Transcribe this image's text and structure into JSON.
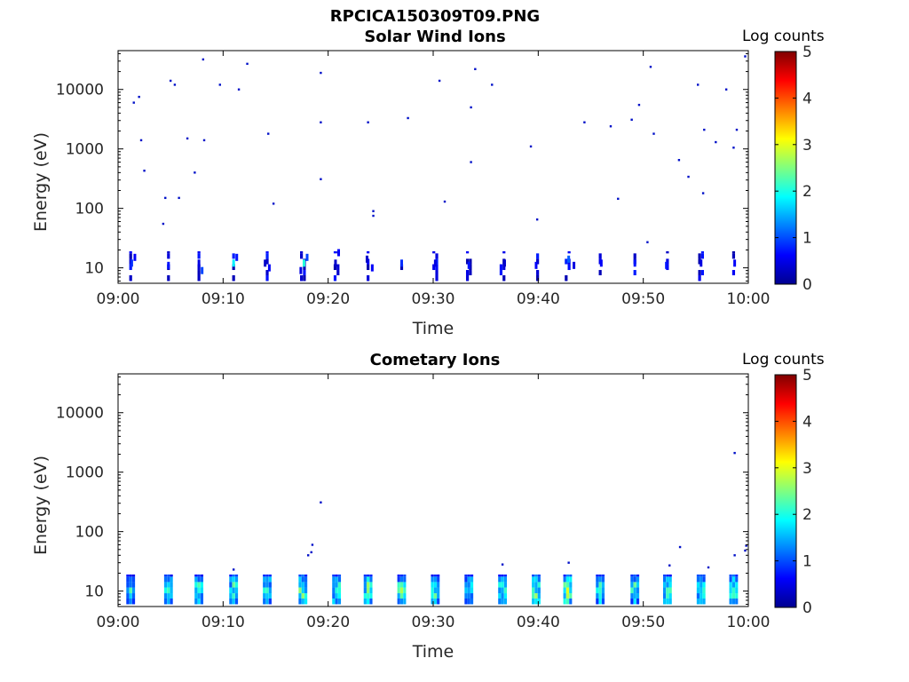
{
  "figure": {
    "title": "RPCICA150309T09.PNG",
    "background": "#ffffff"
  },
  "chart_data": [
    {
      "type": "heatmap",
      "title": "Solar Wind Ions",
      "xlabel": "Time",
      "ylabel": "Energy (eV)",
      "x_ticks": [
        "09:00",
        "09:10",
        "09:20",
        "09:30",
        "09:40",
        "09:50",
        "10:00"
      ],
      "x_range_minutes": [
        0,
        60
      ],
      "y_scale": "log",
      "y_range": [
        5.5,
        45000
      ],
      "y_ticks": [
        10,
        100,
        1000,
        10000
      ],
      "y_tick_labels": [
        "10",
        "100",
        "1000",
        "10000"
      ],
      "colorbar": {
        "label": "Log counts",
        "min": 0,
        "max": 5,
        "ticks": [
          "0",
          "1",
          "2",
          "3",
          "4",
          "5"
        ],
        "colormap": "jet"
      },
      "scan_times_min": [
        1.2,
        4.8,
        7.7,
        11.0,
        14.2,
        17.6,
        20.8,
        23.8,
        27.0,
        30.2,
        33.4,
        36.6,
        39.8,
        42.8,
        45.9,
        49.2,
        52.3,
        55.5,
        58.6
      ],
      "low_energy_points": [
        {
          "t": 1.3,
          "e": 12,
          "v": 0.7
        },
        {
          "t": 1.6,
          "e": 15,
          "v": 0.5
        },
        {
          "t": 4.8,
          "e": 11,
          "v": 0.6
        },
        {
          "t": 7.7,
          "e": 12,
          "v": 0.4
        },
        {
          "t": 8.0,
          "e": 9,
          "v": 0.8
        },
        {
          "t": 11.0,
          "e": 12,
          "v": 1.5
        },
        {
          "t": 11.3,
          "e": 15,
          "v": 0.6
        },
        {
          "t": 14.0,
          "e": 12,
          "v": 0.3
        },
        {
          "t": 14.4,
          "e": 10,
          "v": 0.5
        },
        {
          "t": 17.7,
          "e": 12,
          "v": 1.7
        },
        {
          "t": 18.0,
          "e": 15,
          "v": 0.8
        },
        {
          "t": 17.4,
          "e": 9,
          "v": 0.4
        },
        {
          "t": 20.7,
          "e": 12,
          "v": 0.3
        },
        {
          "t": 21.0,
          "e": 18,
          "v": 0.5
        },
        {
          "t": 23.7,
          "e": 14,
          "v": 0.3
        },
        {
          "t": 24.2,
          "e": 10,
          "v": 0.5
        },
        {
          "t": 27.0,
          "e": 12,
          "v": 0.7
        },
        {
          "t": 30.2,
          "e": 12,
          "v": 0.4
        },
        {
          "t": 33.4,
          "e": 11,
          "v": 0.6
        },
        {
          "t": 36.8,
          "e": 12,
          "v": 0.3
        },
        {
          "t": 39.8,
          "e": 11,
          "v": 0.5
        },
        {
          "t": 42.9,
          "e": 14,
          "v": 0.9
        },
        {
          "t": 43.4,
          "e": 11,
          "v": 0.4
        },
        {
          "t": 46.0,
          "e": 12,
          "v": 0.5
        },
        {
          "t": 49.2,
          "e": 12,
          "v": 0.6
        },
        {
          "t": 52.2,
          "e": 11,
          "v": 0.6
        },
        {
          "t": 55.5,
          "e": 12,
          "v": 0.4
        },
        {
          "t": 58.7,
          "e": 12,
          "v": 0.5
        }
      ],
      "scatter_points": [
        {
          "t": 1.5,
          "e": 6000
        },
        {
          "t": 2.0,
          "e": 7500
        },
        {
          "t": 2.2,
          "e": 1400
        },
        {
          "t": 2.5,
          "e": 430
        },
        {
          "t": 4.5,
          "e": 150
        },
        {
          "t": 4.3,
          "e": 55
        },
        {
          "t": 5.0,
          "e": 14000
        },
        {
          "t": 5.4,
          "e": 12000
        },
        {
          "t": 5.8,
          "e": 150
        },
        {
          "t": 6.6,
          "e": 1500
        },
        {
          "t": 7.3,
          "e": 400
        },
        {
          "t": 8.1,
          "e": 32000
        },
        {
          "t": 8.2,
          "e": 1400
        },
        {
          "t": 9.7,
          "e": 12000
        },
        {
          "t": 11.5,
          "e": 10000
        },
        {
          "t": 12.3,
          "e": 27000
        },
        {
          "t": 14.3,
          "e": 1800
        },
        {
          "t": 14.8,
          "e": 120
        },
        {
          "t": 19.3,
          "e": 19000
        },
        {
          "t": 19.3,
          "e": 2800
        },
        {
          "t": 19.3,
          "e": 310
        },
        {
          "t": 23.8,
          "e": 2800
        },
        {
          "t": 24.3,
          "e": 90
        },
        {
          "t": 24.3,
          "e": 75
        },
        {
          "t": 27.6,
          "e": 3300
        },
        {
          "t": 30.6,
          "e": 14000
        },
        {
          "t": 31.1,
          "e": 130
        },
        {
          "t": 33.6,
          "e": 5000
        },
        {
          "t": 34.0,
          "e": 22000
        },
        {
          "t": 33.6,
          "e": 600
        },
        {
          "t": 35.6,
          "e": 12000
        },
        {
          "t": 39.3,
          "e": 1100
        },
        {
          "t": 39.9,
          "e": 65
        },
        {
          "t": 44.4,
          "e": 2800
        },
        {
          "t": 46.9,
          "e": 2400
        },
        {
          "t": 47.6,
          "e": 145
        },
        {
          "t": 48.9,
          "e": 3100
        },
        {
          "t": 49.6,
          "e": 5500
        },
        {
          "t": 50.7,
          "e": 24000
        },
        {
          "t": 51.0,
          "e": 1800
        },
        {
          "t": 53.4,
          "e": 650
        },
        {
          "t": 54.3,
          "e": 340
        },
        {
          "t": 55.2,
          "e": 12000
        },
        {
          "t": 55.8,
          "e": 2100
        },
        {
          "t": 55.7,
          "e": 180
        },
        {
          "t": 56.9,
          "e": 1300
        },
        {
          "t": 57.9,
          "e": 10000
        },
        {
          "t": 58.6,
          "e": 1050
        },
        {
          "t": 58.9,
          "e": 2100
        },
        {
          "t": 59.7,
          "e": 36000
        },
        {
          "t": 50.4,
          "e": 27
        }
      ]
    },
    {
      "type": "heatmap",
      "title": "Cometary Ions",
      "xlabel": "Time",
      "ylabel": "Energy (eV)",
      "x_ticks": [
        "09:00",
        "09:10",
        "09:20",
        "09:30",
        "09:40",
        "09:50",
        "10:00"
      ],
      "x_range_minutes": [
        0,
        60
      ],
      "y_scale": "log",
      "y_range": [
        5.5,
        45000
      ],
      "y_ticks": [
        10,
        100,
        1000,
        10000
      ],
      "y_tick_labels": [
        "10",
        "100",
        "1000",
        "10000"
      ],
      "colorbar": {
        "label": "Log counts",
        "min": 0,
        "max": 5,
        "ticks": [
          "0",
          "1",
          "2",
          "3",
          "4",
          "5"
        ],
        "colormap": "jet"
      },
      "scan_times_min": [
        1.2,
        4.8,
        7.7,
        11.0,
        14.2,
        17.6,
        20.8,
        23.8,
        27.0,
        30.2,
        33.4,
        36.6,
        39.8,
        42.8,
        45.9,
        49.2,
        52.3,
        55.5,
        58.6
      ],
      "scan_peak_log_counts": [
        1.7,
        1.8,
        2.0,
        1.9,
        1.9,
        2.2,
        2.0,
        2.1,
        2.0,
        1.9,
        1.8,
        1.9,
        2.1,
        2.4,
        2.0,
        1.9,
        1.9,
        2.0,
        2.0
      ],
      "scatter_points": [
        {
          "t": 18.1,
          "e": 40
        },
        {
          "t": 18.4,
          "e": 45
        },
        {
          "t": 18.5,
          "e": 60
        },
        {
          "t": 19.3,
          "e": 310
        },
        {
          "t": 53.5,
          "e": 55
        },
        {
          "t": 58.7,
          "e": 2100
        },
        {
          "t": 58.7,
          "e": 40
        },
        {
          "t": 59.7,
          "e": 48
        },
        {
          "t": 60.2,
          "e": 48
        },
        {
          "t": 59.8,
          "e": 58
        },
        {
          "t": 36.6,
          "e": 28
        },
        {
          "t": 42.9,
          "e": 30
        },
        {
          "t": 11.0,
          "e": 23
        },
        {
          "t": 52.5,
          "e": 27
        },
        {
          "t": 56.2,
          "e": 25
        }
      ]
    }
  ]
}
